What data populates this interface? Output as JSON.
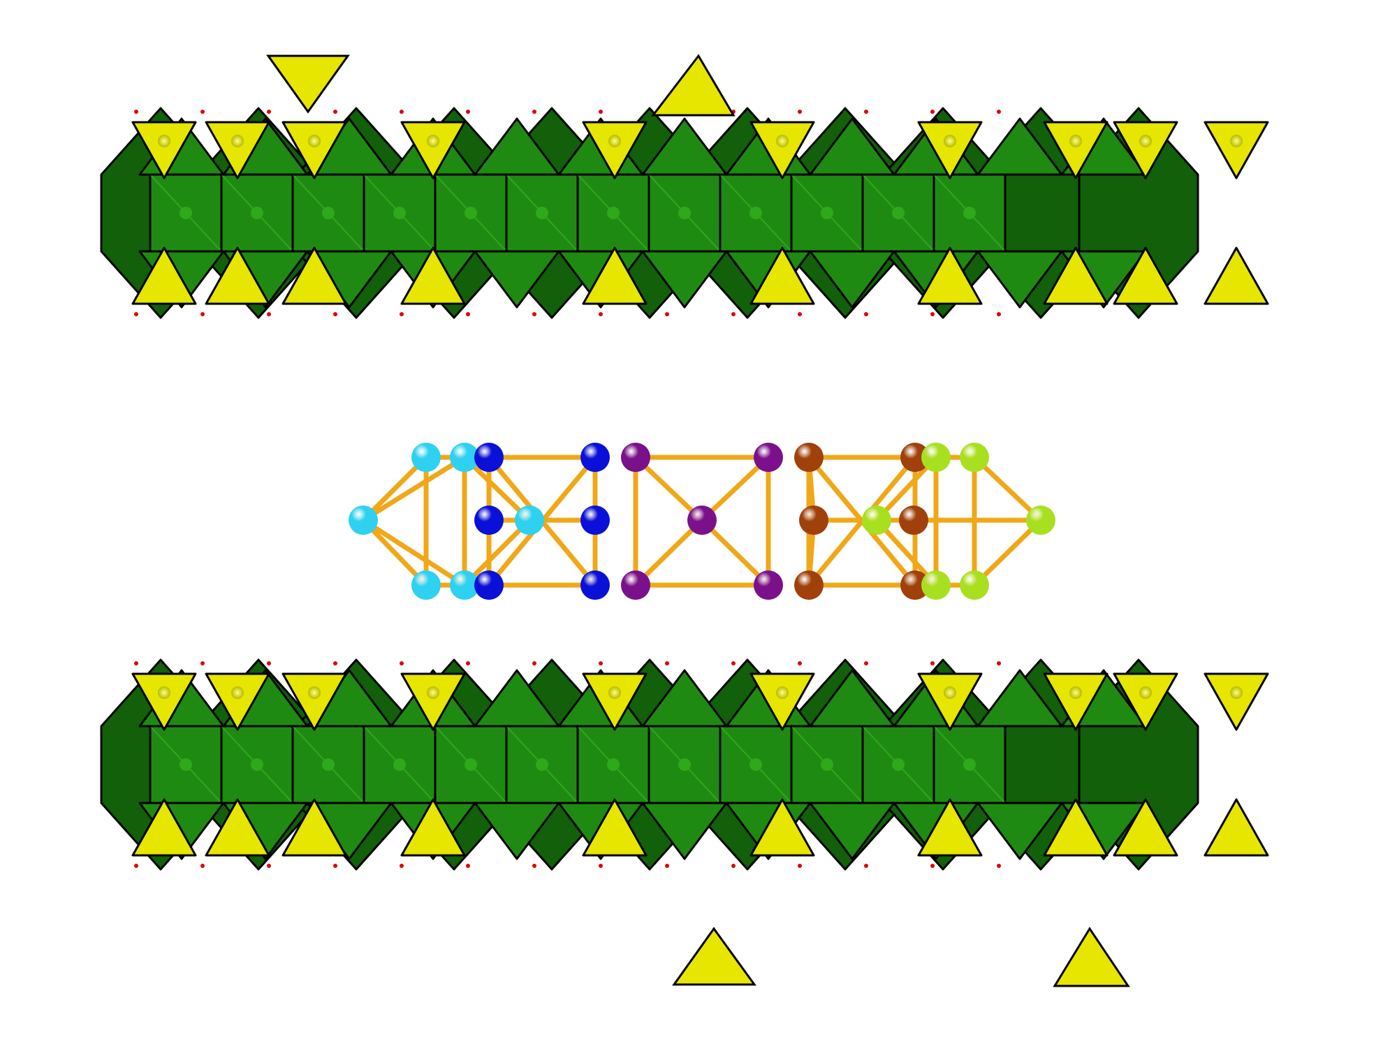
{
  "colors": {
    "background": "#ffffff",
    "octahedron_fill": "#1f8a12",
    "octahedron_light": "#2fa81c",
    "octahedron_dark": "#12600a",
    "tetrahedron_fill": "#e6e600",
    "tetrahedron_dark": "#b9b900",
    "edge": "#000000",
    "oxygen": "#e00000",
    "bond": "#f0a818",
    "atom_cyan": "#2ed1f0",
    "atom_blue": "#0a10d8",
    "atom_purple": "#7a108a",
    "atom_brown": "#a0400a",
    "atom_lime": "#a8e020"
  },
  "components": {
    "upper_band": {
      "icon": "polyhedral-chain-icon"
    },
    "cluster": {
      "icon": "atom-cluster-icon"
    },
    "lower_band": {
      "icon": "polyhedral-chain-icon"
    }
  }
}
